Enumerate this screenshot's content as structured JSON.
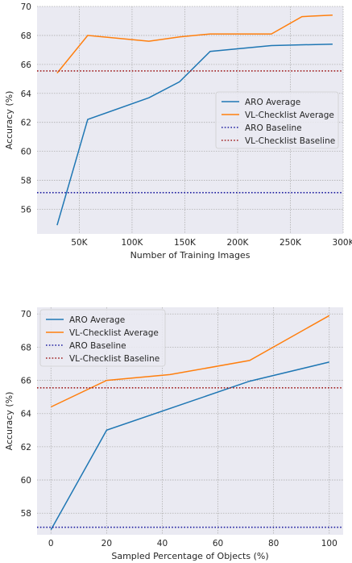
{
  "chart_data": [
    {
      "type": "line",
      "title": "",
      "xlabel": "Number of Training Images",
      "ylabel": "Accuracy (%)",
      "xlim": [
        10000,
        300000
      ],
      "ylim": [
        54.3,
        70
      ],
      "x_ticks": [
        50000,
        100000,
        150000,
        200000,
        250000,
        300000
      ],
      "x_tick_labels": [
        "50K",
        "100K",
        "150K",
        "200K",
        "250K",
        "300K"
      ],
      "y_ticks": [
        56,
        58,
        60,
        62,
        64,
        66,
        68,
        70
      ],
      "y_tick_labels": [
        "56",
        "58",
        "60",
        "62",
        "64",
        "66",
        "68",
        "70"
      ],
      "grid": true,
      "legend_position": "right",
      "series": [
        {
          "name": "ARO Average",
          "style": "solid",
          "color": "#1f77b4",
          "x": [
            29000,
            58000,
            116000,
            145000,
            174000,
            232000,
            290000
          ],
          "y": [
            54.9,
            62.2,
            63.7,
            64.8,
            66.9,
            67.3,
            67.4
          ]
        },
        {
          "name": "VL-Checklist Average",
          "style": "solid",
          "color": "#ff7f0e",
          "x": [
            29000,
            58000,
            116000,
            145000,
            174000,
            232000,
            261000,
            290000
          ],
          "y": [
            65.4,
            68.0,
            67.6,
            67.9,
            68.1,
            68.1,
            69.3,
            69.4
          ]
        },
        {
          "name": "ARO Baseline",
          "style": "dotted",
          "color": "#1f1fa0",
          "x": [
            10000,
            300000
          ],
          "y": [
            57.15,
            57.15
          ]
        },
        {
          "name": "VL-Checklist Baseline",
          "style": "dotted",
          "color": "#a01f1f",
          "x": [
            10000,
            300000
          ],
          "y": [
            65.55,
            65.55
          ]
        }
      ]
    },
    {
      "type": "line",
      "title": "",
      "xlabel": "Sampled Percentage of Objects (%)",
      "ylabel": "Accuracy (%)",
      "xlim": [
        -5,
        105
      ],
      "ylim": [
        56.7,
        70.4
      ],
      "x_ticks": [
        0,
        20,
        40,
        60,
        80,
        100
      ],
      "x_tick_labels": [
        "0",
        "20",
        "40",
        "60",
        "80",
        "100"
      ],
      "y_ticks": [
        58,
        60,
        62,
        64,
        66,
        68,
        70
      ],
      "y_tick_labels": [
        "58",
        "60",
        "62",
        "64",
        "66",
        "68",
        "70"
      ],
      "grid": true,
      "legend_position": "upper-left",
      "series": [
        {
          "name": "ARO Average",
          "style": "solid",
          "color": "#1f77b4",
          "x": [
            0,
            20,
            71.4,
            100
          ],
          "y": [
            57.0,
            63.0,
            65.95,
            67.1
          ]
        },
        {
          "name": "VL-Checklist Average",
          "style": "solid",
          "color": "#ff7f0e",
          "x": [
            0,
            20,
            42.8,
            71.4,
            100
          ],
          "y": [
            64.4,
            66.0,
            66.35,
            67.2,
            69.9
          ]
        },
        {
          "name": "ARO Baseline",
          "style": "dotted",
          "color": "#1f1fa0",
          "x": [
            -5,
            105
          ],
          "y": [
            57.15,
            57.15
          ]
        },
        {
          "name": "VL-Checklist Baseline",
          "style": "dotted",
          "color": "#a01f1f",
          "x": [
            -5,
            105
          ],
          "y": [
            65.55,
            65.55
          ]
        }
      ]
    }
  ]
}
